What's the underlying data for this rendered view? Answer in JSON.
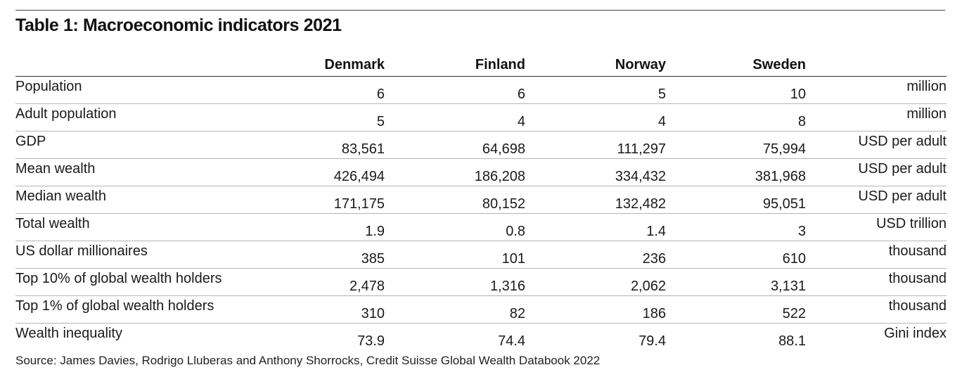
{
  "title": "Table 1: Macroeconomic indicators 2021",
  "columns": [
    "Denmark",
    "Finland",
    "Norway",
    "Sweden"
  ],
  "rows": [
    {
      "label": "Population",
      "values": [
        "6",
        "6",
        "5",
        "10"
      ],
      "unit": "million"
    },
    {
      "label": "Adult population",
      "values": [
        "5",
        "4",
        "4",
        "8"
      ],
      "unit": "million"
    },
    {
      "label": "GDP",
      "values": [
        "83,561",
        "64,698",
        "111,297",
        "75,994"
      ],
      "unit": "USD per adult"
    },
    {
      "label": "Mean wealth",
      "values": [
        "426,494",
        "186,208",
        "334,432",
        "381,968"
      ],
      "unit": "USD per adult"
    },
    {
      "label": "Median wealth",
      "values": [
        "171,175",
        "80,152",
        "132,482",
        "95,051"
      ],
      "unit": "USD per adult"
    },
    {
      "label": "Total wealth",
      "values": [
        "1.9",
        "0.8",
        "1.4",
        "3"
      ],
      "unit": "USD trillion"
    },
    {
      "label": "US dollar millionaires",
      "values": [
        "385",
        "101",
        "236",
        "610"
      ],
      "unit": "thousand"
    },
    {
      "label": "Top 10% of global wealth holders",
      "values": [
        "2,478",
        "1,316",
        "2,062",
        "3,131"
      ],
      "unit": "thousand"
    },
    {
      "label": "Top 1% of global wealth holders",
      "values": [
        "310",
        "82",
        "186",
        "522"
      ],
      "unit": "thousand"
    },
    {
      "label": "Wealth inequality",
      "values": [
        "73.9",
        "74.4",
        "79.4",
        "88.1"
      ],
      "unit": "Gini index"
    }
  ],
  "source": "Source: James Davies, Rodrigo Lluberas and Anthony Shorrocks, Credit Suisse Global Wealth Databook 2022"
}
